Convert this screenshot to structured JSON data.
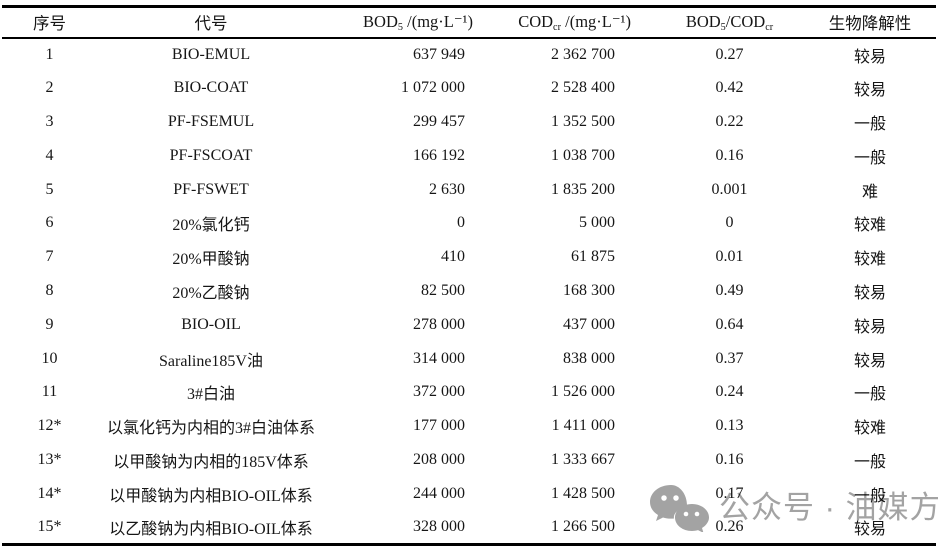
{
  "table": {
    "columns": [
      {
        "label": "序号"
      },
      {
        "label": "代号"
      },
      {
        "pre": "BOD",
        "sub": "5",
        "post": " /(mg·L⁻¹)"
      },
      {
        "pre": "COD",
        "sub": "cr",
        "post": " /(mg·L⁻¹)"
      },
      {
        "pre": "BOD",
        "sub": "5",
        "mid": "/COD",
        "sub2": "cr"
      },
      {
        "label": "生物降解性"
      }
    ],
    "rows": [
      {
        "no": "1",
        "code": "BIO-EMUL",
        "bod5": "637 949",
        "cod": "2 362 700",
        "ratio": "0.27",
        "biodegradability": "较易"
      },
      {
        "no": "2",
        "code": "BIO-COAT",
        "bod5": "1 072 000",
        "cod": "2 528 400",
        "ratio": "0.42",
        "biodegradability": "较易"
      },
      {
        "no": "3",
        "code": "PF-FSEMUL",
        "bod5": "299 457",
        "cod": "1 352 500",
        "ratio": "0.22",
        "biodegradability": "一般"
      },
      {
        "no": "4",
        "code": "PF-FSCOAT",
        "bod5": "166 192",
        "cod": "1 038 700",
        "ratio": "0.16",
        "biodegradability": "一般"
      },
      {
        "no": "5",
        "code": "PF-FSWET",
        "bod5": "2 630",
        "cod": "1 835 200",
        "ratio": "0.001",
        "biodegradability": "难"
      },
      {
        "no": "6",
        "code": "20%氯化钙",
        "bod5": "0",
        "cod": "5 000",
        "ratio": "0",
        "biodegradability": "较难"
      },
      {
        "no": "7",
        "code": "20%甲酸钠",
        "bod5": "410",
        "cod": "61 875",
        "ratio": "0.01",
        "biodegradability": "较难"
      },
      {
        "no": "8",
        "code": "20%乙酸钠",
        "bod5": "82 500",
        "cod": "168 300",
        "ratio": "0.49",
        "biodegradability": "较易"
      },
      {
        "no": "9",
        "code": "BIO-OIL",
        "bod5": "278 000",
        "cod": "437 000",
        "ratio": "0.64",
        "biodegradability": "较易"
      },
      {
        "no": "10",
        "code": "Saraline185V油",
        "bod5": "314 000",
        "cod": "838 000",
        "ratio": "0.37",
        "biodegradability": "较易"
      },
      {
        "no": "11",
        "code": "3#白油",
        "bod5": "372 000",
        "cod": "1 526 000",
        "ratio": "0.24",
        "biodegradability": "一般"
      },
      {
        "no": "12*",
        "code": "以氯化钙为内相的3#白油体系",
        "bod5": "177 000",
        "cod": "1 411 000",
        "ratio": "0.13",
        "biodegradability": "较难"
      },
      {
        "no": "13*",
        "code": "以甲酸钠为内相的185V体系",
        "bod5": "208 000",
        "cod": "1 333 667",
        "ratio": "0.16",
        "biodegradability": "一般"
      },
      {
        "no": "14*",
        "code": "以甲酸钠为内相BIO-OIL体系",
        "bod5": "244 000",
        "cod": "1 428 500",
        "ratio": "0.17",
        "biodegradability": "一般"
      },
      {
        "no": "15*",
        "code": "以乙酸钠为内相BIO-OIL体系",
        "bod5": "328 000",
        "cod": "1 266 500",
        "ratio": "0.26",
        "biodegradability": "较易"
      }
    ]
  },
  "watermark": {
    "icon": "wechat-icon",
    "text": "公众号 · 油媒方"
  },
  "colors": {
    "background": "#ffffff",
    "text": "#161616",
    "border": "#000000",
    "watermark": "#a3a3a3"
  }
}
